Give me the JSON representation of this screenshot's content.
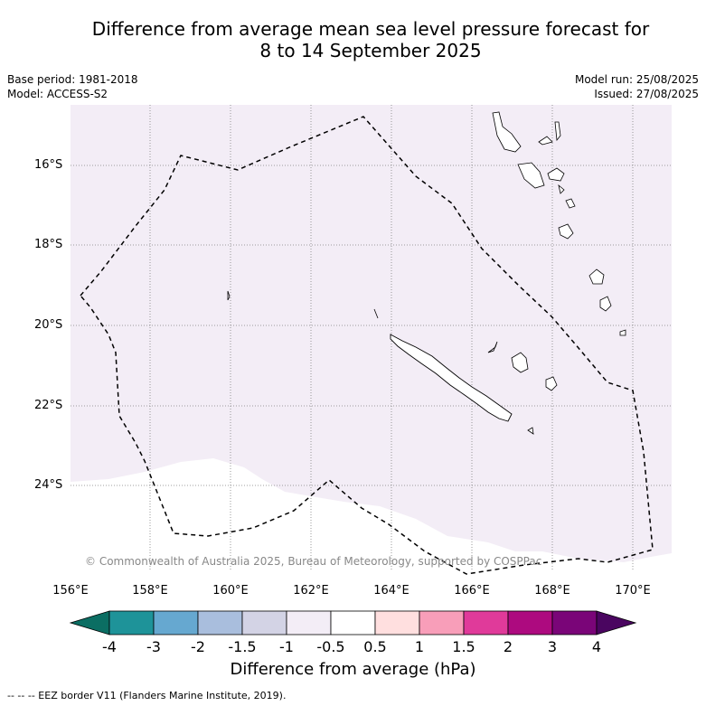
{
  "title_line1": "Difference from average mean sea level pressure forecast for",
  "title_line2": "8 to 14 September 2025",
  "base_period": "Base period: 1981-2018",
  "model": "Model: ACCESS-S2",
  "model_run": "Model run: 25/08/2025",
  "issued": "Issued: 27/08/2025",
  "lat_labels": [
    "16°S",
    "18°S",
    "20°S",
    "22°S",
    "24°S"
  ],
  "lon_labels": [
    "156°E",
    "158°E",
    "160°E",
    "162°E",
    "164°E",
    "166°E",
    "168°E",
    "170°E"
  ],
  "copyright": "© Commonwealth of Australia 2025, Bureau of Meteorology, supported by COSPPac",
  "colorbar": {
    "ticks": [
      "-4",
      "-3",
      "-2",
      "-1.5",
      "-1",
      "-0.5",
      "0.5",
      "1",
      "1.5",
      "2",
      "3",
      "4"
    ],
    "colors": [
      "#0b6e63",
      "#1e9399",
      "#66a8d0",
      "#a9bedd",
      "#d3d3e5",
      "#f3edf6",
      "#ffffff",
      "#ffdfdf",
      "#f89eb9",
      "#e03a9a",
      "#ad0a7f",
      "#7a0578",
      "#4a0560"
    ],
    "label": "Difference from average (hPa)"
  },
  "footnote": "--  --  -- EEZ border V11 (Flanders Marine Institute, 2019)."
}
